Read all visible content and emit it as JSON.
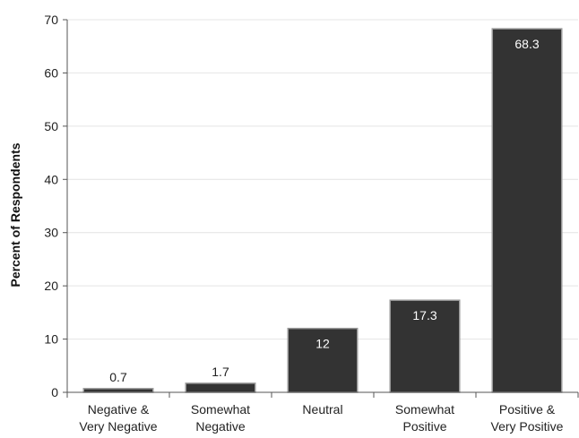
{
  "chart_data": {
    "type": "bar",
    "title": "",
    "xlabel": "",
    "ylabel": "Percent of Respondents",
    "ylim": [
      0,
      70
    ],
    "yticks": [
      0,
      10,
      20,
      30,
      40,
      50,
      60,
      70
    ],
    "grid": true,
    "categories": [
      [
        "Negative &",
        "Very Negative"
      ],
      [
        "Somewhat",
        "Negative"
      ],
      [
        "Neutral"
      ],
      [
        "Somewhat",
        "Positive"
      ],
      [
        "Positive &",
        "Very Positive"
      ]
    ],
    "values": [
      0.7,
      1.7,
      12,
      17.3,
      68.3
    ],
    "value_labels": [
      "0.7",
      "1.7",
      "12",
      "17.3",
      "68.3"
    ],
    "colors": {
      "bar_fill": "#333333",
      "bar_stroke": "#999999",
      "grid": "#e4e4e4",
      "axis": "#555555",
      "label_inside": "#ffffff",
      "label_outside": "#222222"
    }
  }
}
